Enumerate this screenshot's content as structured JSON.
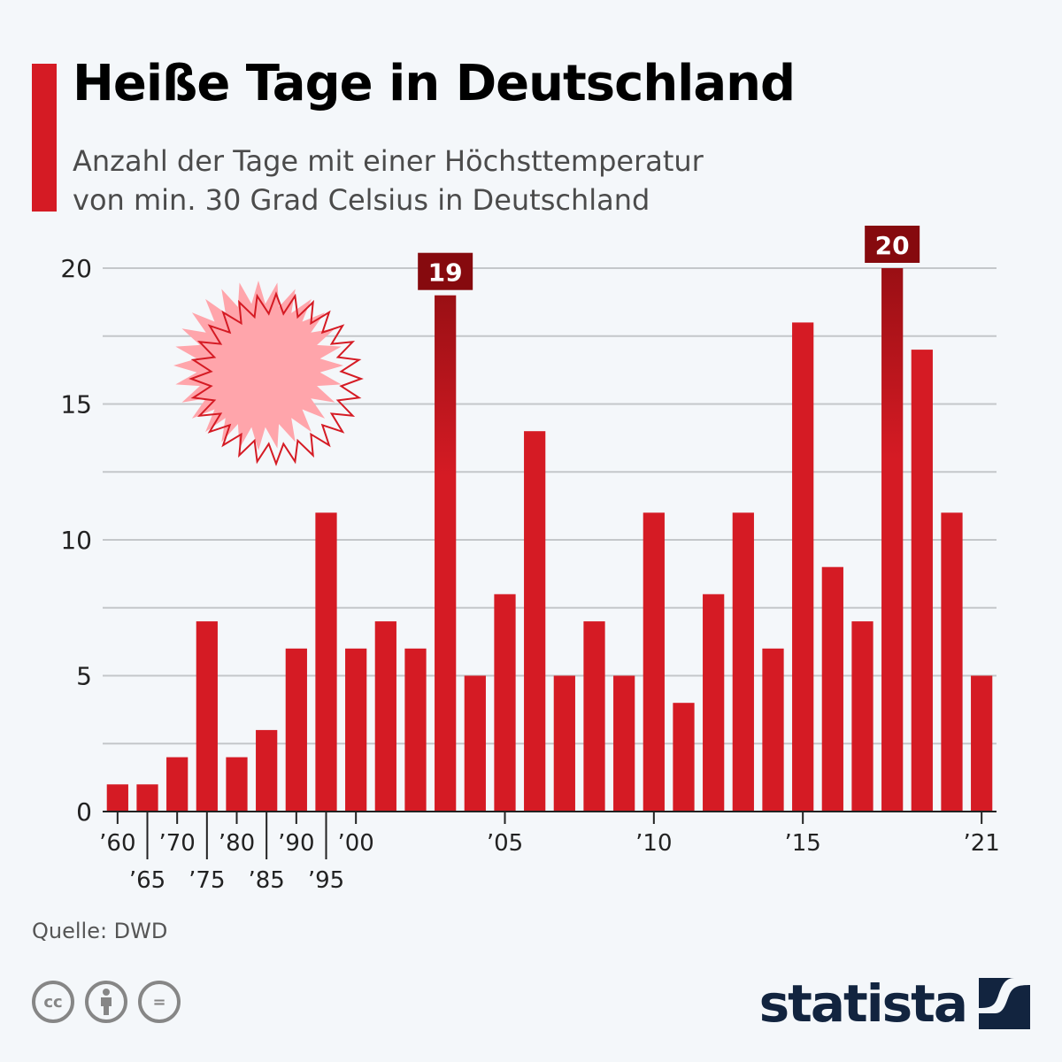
{
  "header": {
    "title": "Heiße Tage in Deutschland",
    "subtitle_line1": "Anzahl der Tage mit einer Höchsttemperatur",
    "subtitle_line2": "von min. 30 Grad Celsius in Deutschland"
  },
  "footer": {
    "source": "Quelle: DWD",
    "logo_text": "statista",
    "license_icons": [
      "cc-icon",
      "attribution-icon",
      "no-derivatives-icon"
    ],
    "cc_label": "cc",
    "nd_label": "="
  },
  "colors": {
    "bar": "#d51b24",
    "highlight_label": "#860a0e",
    "accent": "#d51b24",
    "sun_fill": "#ffa5ab",
    "sun_stroke": "#d51b24",
    "grid": "#c4c7ca",
    "logo": "#12243f"
  },
  "chart_data": {
    "type": "bar",
    "title": "Heiße Tage in Deutschland",
    "xlabel": "",
    "ylabel": "",
    "ylim": [
      0,
      20
    ],
    "yticks": [
      0,
      5,
      10,
      15,
      20
    ],
    "grid": true,
    "categories": [
      1960,
      1965,
      1970,
      1975,
      1980,
      1985,
      1990,
      1995,
      2000,
      2001,
      2002,
      2003,
      2004,
      2005,
      2006,
      2007,
      2008,
      2009,
      2010,
      2011,
      2012,
      2013,
      2014,
      2015,
      2016,
      2017,
      2018,
      2019,
      2020,
      2021
    ],
    "values": [
      1,
      1,
      2,
      7,
      2,
      3,
      6,
      11,
      6,
      7,
      6,
      19,
      5,
      8,
      14,
      5,
      7,
      5,
      11,
      4,
      8,
      11,
      6,
      18,
      9,
      7,
      20,
      17,
      11,
      5
    ],
    "xtick_labels": [
      {
        "year": 1960,
        "label": "’60",
        "row": 1
      },
      {
        "year": 1965,
        "label": "’65",
        "row": 2
      },
      {
        "year": 1970,
        "label": "’70",
        "row": 1
      },
      {
        "year": 1975,
        "label": "’75",
        "row": 2
      },
      {
        "year": 1980,
        "label": "’80",
        "row": 1
      },
      {
        "year": 1985,
        "label": "’85",
        "row": 2
      },
      {
        "year": 1990,
        "label": "’90",
        "row": 1
      },
      {
        "year": 1995,
        "label": "’95",
        "row": 2
      },
      {
        "year": 2000,
        "label": "’00",
        "row": 1
      },
      {
        "year": 2005,
        "label": "’05",
        "row": 1
      },
      {
        "year": 2010,
        "label": "’10",
        "row": 1
      },
      {
        "year": 2015,
        "label": "’15",
        "row": 1
      },
      {
        "year": 2021,
        "label": "’21",
        "row": 1
      }
    ],
    "highlights": [
      {
        "year": 2003,
        "label": "19"
      },
      {
        "year": 2018,
        "label": "20"
      }
    ],
    "decoration": "sun-icon"
  }
}
